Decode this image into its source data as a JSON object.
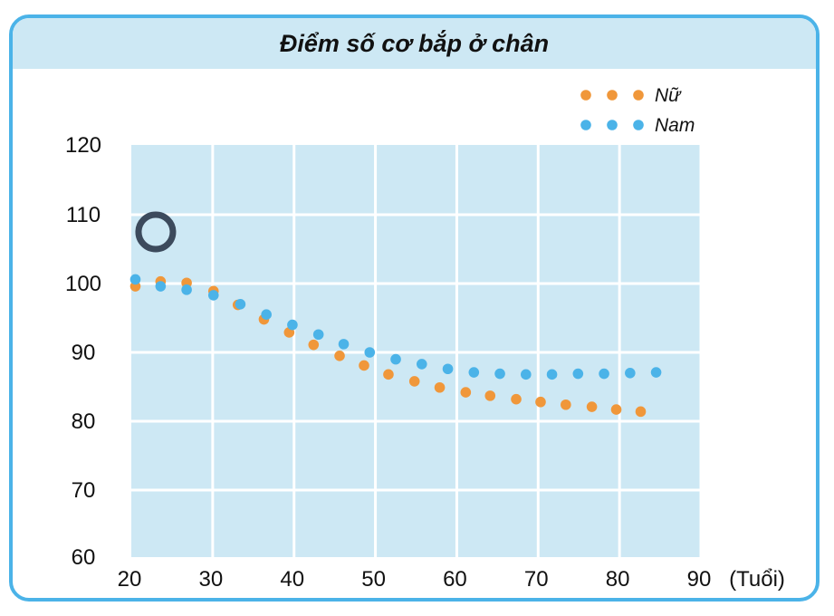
{
  "chart_data": {
    "type": "scatter",
    "title": "Điểm số cơ bắp ở chân",
    "xlabel": "(Tuổi)",
    "ylabel": "",
    "xlim": [
      20,
      90
    ],
    "ylim": [
      60,
      120
    ],
    "x_ticks": [
      "20",
      "30",
      "40",
      "50",
      "60",
      "70",
      "80",
      "90"
    ],
    "y_ticks": [
      "60",
      "70",
      "80",
      "90",
      "100",
      "110",
      "120"
    ],
    "grid": true,
    "legend_position": "top-right",
    "colors": {
      "plot_bg": "#cde8f4",
      "grid": "#ffffff",
      "frame": "#4bb3e8",
      "marker_ring": "#3c4a5c"
    },
    "series": [
      {
        "name": "Nữ",
        "color": "#f0973a",
        "x": [
          20.5,
          23.6,
          26.8,
          30.1,
          33.1,
          36.3,
          39.4,
          42.4,
          45.6,
          48.6,
          51.6,
          54.8,
          57.9,
          61.1,
          64.1,
          67.3,
          70.3,
          73.4,
          76.6,
          79.6,
          82.6
        ],
        "y": [
          99.6,
          100.3,
          100.1,
          98.9,
          96.9,
          94.8,
          92.9,
          91.1,
          89.5,
          88.1,
          86.8,
          85.8,
          84.9,
          84.2,
          83.7,
          83.2,
          82.8,
          82.4,
          82.1,
          81.7,
          81.4
        ]
      },
      {
        "name": "Nam",
        "color": "#4bb3e8",
        "x": [
          20.5,
          23.6,
          26.8,
          30.1,
          33.4,
          36.6,
          39.8,
          43.0,
          46.1,
          49.3,
          52.5,
          55.7,
          58.9,
          62.1,
          65.3,
          68.5,
          71.7,
          74.9,
          78.1,
          81.3,
          84.5
        ],
        "y": [
          100.6,
          99.6,
          99.1,
          98.3,
          97.0,
          95.5,
          94.0,
          92.6,
          91.2,
          90.0,
          89.0,
          88.3,
          87.6,
          87.1,
          86.9,
          86.8,
          86.8,
          86.9,
          86.9,
          87.0,
          87.1
        ]
      }
    ],
    "annotations": [
      {
        "type": "ring-marker",
        "x": 23,
        "y": 107.5
      }
    ]
  }
}
